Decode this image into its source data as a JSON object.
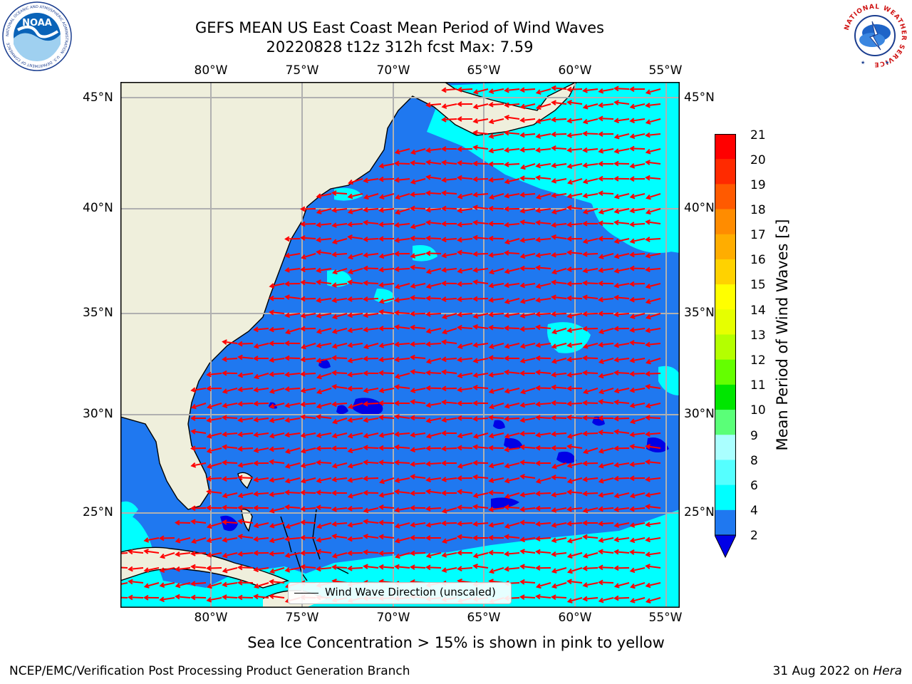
{
  "title": {
    "line1": "GEFS MEAN US East Coast Mean Period of Wind Waves",
    "line2": "20220828 t12z 312h fcst   Max: 7.59"
  },
  "map": {
    "lon_labels": [
      "80°W",
      "75°W",
      "70°W",
      "65°W",
      "60°W",
      "55°W"
    ],
    "lat_labels": [
      "45°N",
      "40°N",
      "35°N",
      "30°N",
      "25°N"
    ],
    "legend_label": "Wind Wave Direction (unscaled)",
    "colors": {
      "land": "#efefdc",
      "ocean_2_4": "#1f78f0",
      "ocean_4_6": "#00ffff",
      "ocean_below_2": "#0000e6",
      "arrow": "#ff0000",
      "grid": "#b0b0b0"
    }
  },
  "colorbar": {
    "label": "Mean Period of Wind Waves [s]",
    "ticks": [
      "21",
      "20",
      "19",
      "18",
      "17",
      "16",
      "15",
      "14",
      "13",
      "12",
      "11",
      "10",
      "9",
      "8",
      "6",
      "4",
      "2"
    ],
    "colors": [
      "#ff0000",
      "#ff2a00",
      "#ff5a00",
      "#ff8c00",
      "#ffad00",
      "#ffd200",
      "#ffff00",
      "#e6ff00",
      "#b4ff00",
      "#64ff00",
      "#00e600",
      "#5aff78",
      "#aaffff",
      "#55ffff",
      "#00ffff",
      "#1f78f0"
    ],
    "under_color": "#0000e6"
  },
  "note": "Sea Ice Concentration > 15% is shown in pink to yellow",
  "footer": {
    "left": "NCEP/EMC/Verification Post Processing Product Generation Branch",
    "date": "31 Aug 2022 on ",
    "machine": "Hera"
  },
  "logos": {
    "left": "NOAA",
    "left_ring": "NATIONAL OCEANIC AND ATMOSPHERIC ADMINISTRATION · U.S. DEPARTMENT OF COMMERCE",
    "right_ring": "NATIONAL WEATHER SERVICE"
  }
}
